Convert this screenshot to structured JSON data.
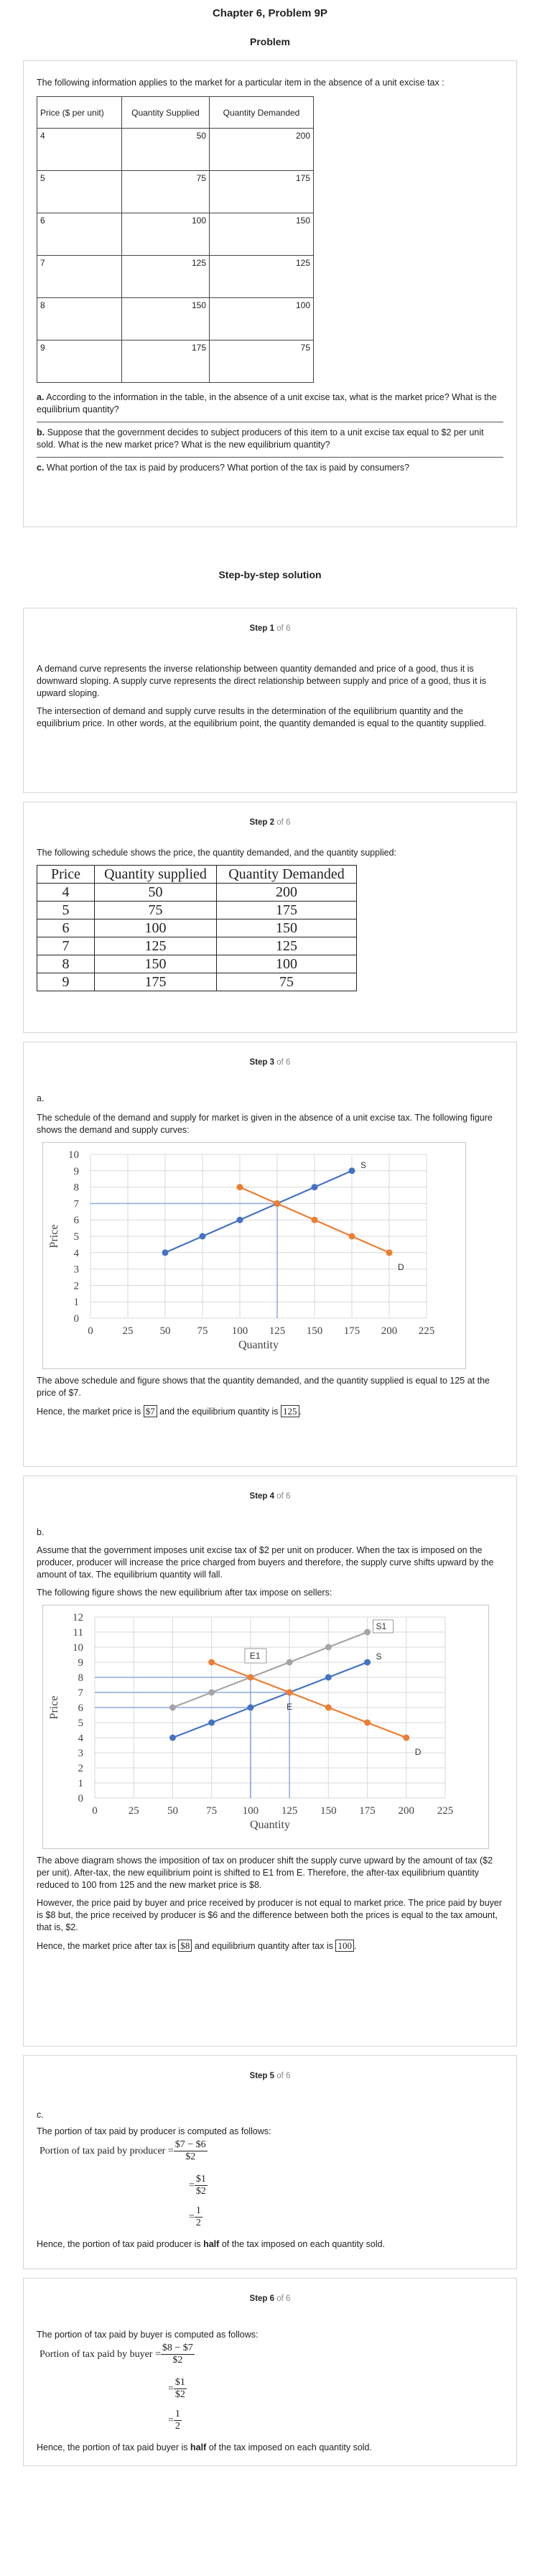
{
  "header": {
    "title": "Chapter 6, Problem 9P",
    "problem_label": "Problem"
  },
  "problem": {
    "intro": "The following information applies to the market for a particular item in the absence of a unit excise tax :",
    "table": {
      "headers": [
        "Price ($ per unit)",
        "Quantity Supplied",
        "Quantity Demanded"
      ],
      "rows": [
        [
          "4",
          "50",
          "200"
        ],
        [
          "5",
          "75",
          "175"
        ],
        [
          "6",
          "100",
          "150"
        ],
        [
          "7",
          "125",
          "125"
        ],
        [
          "8",
          "150",
          "100"
        ],
        [
          "9",
          "175",
          "75"
        ]
      ]
    },
    "a_label": "a.",
    "a_text": "According to the information in the table, in the absence of a unit excise tax, what is the market price? What is the equilibrium quantity?",
    "b_label": "b.",
    "b_text": "Suppose that the government decides to subject producers of this item to a unit excise tax equal to $2 per unit sold. What is the new market price? What is the new equilibrium quantity?",
    "c_label": "c.",
    "c_text": "What portion of the tax is paid by producers? What portion of the tax is paid by consumers?"
  },
  "solution": {
    "title": "Step-by-step solution"
  },
  "step_word": "Step",
  "of_word": "of 6",
  "steps": {
    "s1": {
      "num": "1",
      "p1": "A demand curve represents the inverse relationship between quantity demanded and price of a good, thus it is downward sloping. A supply curve represents the direct relationship between supply and price of a good, thus it is upward sloping.",
      "p2": "The intersection of demand and supply curve results in the determination of the equilibrium quantity and the equilibrium price. In other words, at the equilibrium point, the quantity demanded is equal to the quantity supplied."
    },
    "s2": {
      "num": "2",
      "intro": "The following schedule shows the price, the quantity demanded, and the quantity supplied:",
      "headers": [
        "Price",
        "Quantity supplied",
        "Quantity Demanded"
      ],
      "rows": [
        [
          "4",
          "50",
          "200"
        ],
        [
          "5",
          "75",
          "175"
        ],
        [
          "6",
          "100",
          "150"
        ],
        [
          "7",
          "125",
          "125"
        ],
        [
          "8",
          "150",
          "100"
        ],
        [
          "9",
          "175",
          "75"
        ]
      ]
    },
    "s3": {
      "num": "3",
      "label": "a.",
      "intro": "The schedule of the demand and supply for market is given in the absence of a unit excise tax. The following figure shows the demand and supply curves:",
      "p1": "The above schedule and figure shows that the quantity demanded, and the quantity supplied is equal to 125 at the price of $7.",
      "p2_pre": "Hence, the market price is",
      "p2_price": "$7",
      "p2_mid": "and the equilibrium quantity is",
      "p2_qty": "125",
      "p2_end": "."
    },
    "s4": {
      "num": "4",
      "label": "b.",
      "p1": "Assume that the government imposes unit excise tax of $2 per unit on producer. When the tax is imposed on the producer, producer will increase the price charged from buyers and therefore, the supply curve shifts upward by the amount of tax. The equilibrium quantity will fall.",
      "p2": "The following figure shows the new equilibrium after tax impose on sellers:",
      "p3": "The above diagram shows the imposition of tax on producer shift the supply curve upward by the amount of tax ($2 per unit). After-tax, the new equilibrium point is shifted to E1 from E. Therefore, the after-tax equilibrium quantity reduced to 100 from 125 and the new market price is $8.",
      "p4": "However, the price paid by buyer and price received by producer is not equal to market price. The price paid by buyer is $8 but, the price received by producer is $6 and the difference between both the prices is equal to the tax amount, that is, $2.",
      "p5_pre": "Hence, the market price after tax is",
      "p5_price": "$8",
      "p5_mid": "and equilibrium quantity after tax is",
      "p5_qty": "100",
      "p5_end": "."
    },
    "s5": {
      "num": "5",
      "label": "c.",
      "intro": "The portion of tax paid by producer is computed as follows:",
      "lhs": "Portion of tax paid by producer",
      "eq": "=",
      "n1": "$7 − $6",
      "d1": "$2",
      "n2": "$1",
      "d2": "$2",
      "n3": "1",
      "d3": "2",
      "conc_pre": "Hence, the portion of tax paid producer is",
      "conc_bold": "half",
      "conc_post": "of the tax imposed on each quantity sold."
    },
    "s6": {
      "num": "6",
      "intro": "The portion of tax paid by buyer is computed as follows:",
      "lhs": "Portion of tax paid by buyer",
      "eq": "=",
      "n1": "$8 − $7",
      "d1": "$2",
      "n2": "$1",
      "d2": "$2",
      "n3": "1",
      "d3": "2",
      "conc_pre": "Hence, the portion of tax paid buyer is",
      "conc_bold": "half",
      "conc_post": "of the tax imposed on each quantity sold."
    }
  },
  "chart_data": [
    {
      "type": "line",
      "xlabel": "Quantity",
      "ylabel": "Price",
      "xlim": [
        0,
        225
      ],
      "ylim": [
        0,
        10
      ],
      "xticks": [
        0,
        25,
        50,
        75,
        100,
        125,
        150,
        175,
        200,
        225
      ],
      "yticks": [
        0,
        1,
        2,
        3,
        4,
        5,
        6,
        7,
        8,
        9,
        10
      ],
      "grid": true,
      "series": [
        {
          "name": "S",
          "color": "#4472c4",
          "x": [
            50,
            75,
            100,
            125,
            150,
            175
          ],
          "y": [
            4,
            5,
            6,
            7,
            8,
            9
          ]
        },
        {
          "name": "D",
          "color": "#ed7d31",
          "x": [
            100,
            125,
            150,
            175,
            200
          ],
          "y": [
            8,
            7,
            6,
            5,
            4
          ]
        }
      ],
      "guides": [
        {
          "x": 125,
          "y": 7
        }
      ]
    },
    {
      "type": "line",
      "xlabel": "Quantity",
      "ylabel": "Price",
      "xlim": [
        0,
        225
      ],
      "ylim": [
        0,
        12
      ],
      "xticks": [
        0,
        25,
        50,
        75,
        100,
        125,
        150,
        175,
        200,
        225
      ],
      "yticks": [
        0,
        1,
        2,
        3,
        4,
        5,
        6,
        7,
        8,
        9,
        10,
        11,
        12
      ],
      "grid": true,
      "series": [
        {
          "name": "S1",
          "color": "#a5a5a5",
          "x": [
            50,
            75,
            100,
            125,
            150,
            175
          ],
          "y": [
            6,
            7,
            8,
            9,
            10,
            11
          ]
        },
        {
          "name": "S",
          "color": "#4472c4",
          "x": [
            50,
            75,
            100,
            125,
            150,
            175
          ],
          "y": [
            4,
            5,
            6,
            7,
            8,
            9
          ]
        },
        {
          "name": "D",
          "color": "#ed7d31",
          "x": [
            75,
            100,
            125,
            150,
            175,
            200
          ],
          "y": [
            9,
            8,
            7,
            6,
            5,
            4
          ]
        }
      ],
      "annotations": [
        {
          "text": "E1",
          "x": 100,
          "y": 8
        },
        {
          "text": "E",
          "x": 125,
          "y": 7
        }
      ],
      "guides": [
        {
          "x": 100,
          "y": 8
        },
        {
          "x": 125,
          "y": 7
        },
        {
          "x": 100,
          "y": 6
        }
      ]
    }
  ]
}
